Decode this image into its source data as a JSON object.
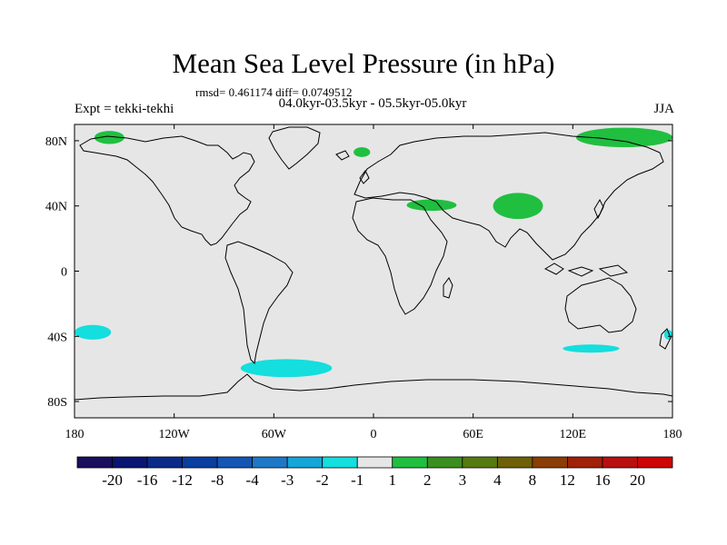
{
  "chart_data": {
    "type": "heatmap",
    "title": "Mean Sea Level Pressure (in hPa)",
    "stats_text": "rmsd= 0.461174 diff= 0.0749512",
    "period_text": "04.0kyr-03.5kyr - 05.5kyr-05.0kyr",
    "experiment_text": "Expt = tekki-tekhi",
    "season_text": "JJA",
    "x_ticks": [
      "180",
      "120W",
      "60W",
      "0",
      "60E",
      "120E",
      "180"
    ],
    "x_tick_values": [
      -180,
      -120,
      -60,
      0,
      60,
      120,
      180
    ],
    "y_ticks": [
      "80N",
      "40N",
      "0",
      "40S",
      "80S"
    ],
    "y_tick_values": [
      80,
      40,
      0,
      -40,
      -80
    ],
    "xlim": [
      -180,
      180
    ],
    "ylim": [
      -90,
      90
    ],
    "colorbar": {
      "labels": [
        "-20",
        "-16",
        "-12",
        "-8",
        "-4",
        "-3",
        "-2",
        "-1",
        "1",
        "2",
        "3",
        "4",
        "8",
        "12",
        "16",
        "20"
      ],
      "colors": [
        "#1a0e5e",
        "#0a1573",
        "#0a2a8a",
        "#0a3ea0",
        "#1555b5",
        "#1e78c8",
        "#15a5d8",
        "#14dede",
        "#e6e6e6",
        "#20bf40",
        "#3b8f1e",
        "#567a12",
        "#6e6008",
        "#8a3d05",
        "#a02008",
        "#b81010",
        "#cc0505"
      ]
    },
    "anomaly_regions": [
      {
        "name": "north-pacific-arctic",
        "level": "1 to 2",
        "color": "#20bf40",
        "lon": [
          -168,
          -150
        ],
        "lat": [
          78,
          86
        ]
      },
      {
        "name": "greenland-east",
        "level": "1 to 2",
        "color": "#20bf40",
        "lon": [
          -12,
          -2
        ],
        "lat": [
          70,
          76
        ]
      },
      {
        "name": "mediterranean-turkey",
        "level": "1 to 2",
        "color": "#20bf40",
        "lon": [
          20,
          50
        ],
        "lat": [
          37,
          44
        ]
      },
      {
        "name": "central-asia-tibet",
        "level": "1 to 2",
        "color": "#20bf40",
        "lon": [
          72,
          102
        ],
        "lat": [
          32,
          48
        ]
      },
      {
        "name": "arctic-siberia",
        "level": "1 to 2",
        "color": "#20bf40",
        "lon": [
          122,
          180
        ],
        "lat": [
          76,
          88
        ]
      },
      {
        "name": "south-pacific",
        "level": "-2 to -1",
        "color": "#14dede",
        "lon": [
          -180,
          -158
        ],
        "lat": [
          -42,
          -33
        ]
      },
      {
        "name": "drake-passage",
        "level": "-2 to -1",
        "color": "#14dede",
        "lon": [
          -80,
          -25
        ],
        "lat": [
          -65,
          -54
        ]
      },
      {
        "name": "south-of-australia",
        "level": "-2 to -1",
        "color": "#14dede",
        "lon": [
          114,
          148
        ],
        "lat": [
          -50,
          -45
        ]
      },
      {
        "name": "south-pacific-east-edge",
        "level": "-2 to -1",
        "color": "#14dede",
        "lon": [
          175,
          180
        ],
        "lat": [
          -42,
          -36
        ]
      }
    ]
  }
}
